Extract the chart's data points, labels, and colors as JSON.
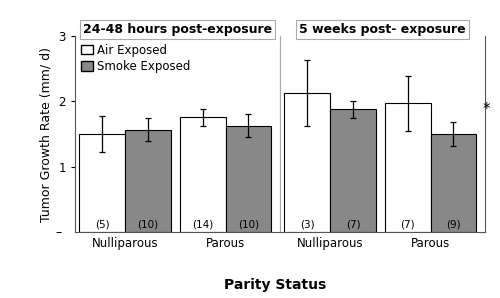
{
  "panels": [
    {
      "title": "24-48 hours post-exposure",
      "groups": [
        "Nulliparous",
        "Parous"
      ],
      "air_values": [
        1.5,
        1.76
      ],
      "smoke_values": [
        1.57,
        1.63
      ],
      "air_errors": [
        0.28,
        0.13
      ],
      "smoke_errors": [
        0.18,
        0.18
      ],
      "air_n": [
        "(5)",
        "(14)"
      ],
      "smoke_n": [
        "(10)",
        "(10)"
      ],
      "significance": [
        false,
        false
      ]
    },
    {
      "title": "5 weeks post- exposure",
      "groups": [
        "Nulliparous",
        "Parous"
      ],
      "air_values": [
        2.13,
        1.97
      ],
      "smoke_values": [
        1.88,
        1.5
      ],
      "air_errors": [
        0.5,
        0.42
      ],
      "smoke_errors": [
        0.13,
        0.18
      ],
      "air_n": [
        "(3)",
        "(7)"
      ],
      "smoke_n": [
        "(7)",
        "(9)"
      ],
      "significance": [
        false,
        true
      ]
    }
  ],
  "ylabel": "Tumor Growth Rate (mm/ d)",
  "xlabel": "Parity Status",
  "ylim": [
    0,
    3.0
  ],
  "yticks": [
    1,
    2,
    3
  ],
  "ytick_labels": [
    "1",
    "2",
    "3"
  ],
  "air_color": "#ffffff",
  "smoke_color": "#888888",
  "bar_edge_color": "#000000",
  "bar_width": 0.32,
  "title_fontsize": 9,
  "axis_label_fontsize": 10,
  "tick_fontsize": 8.5,
  "legend_fontsize": 8.5,
  "n_fontsize": 7.5,
  "significance_marker": "*",
  "background_color": "#ffffff"
}
